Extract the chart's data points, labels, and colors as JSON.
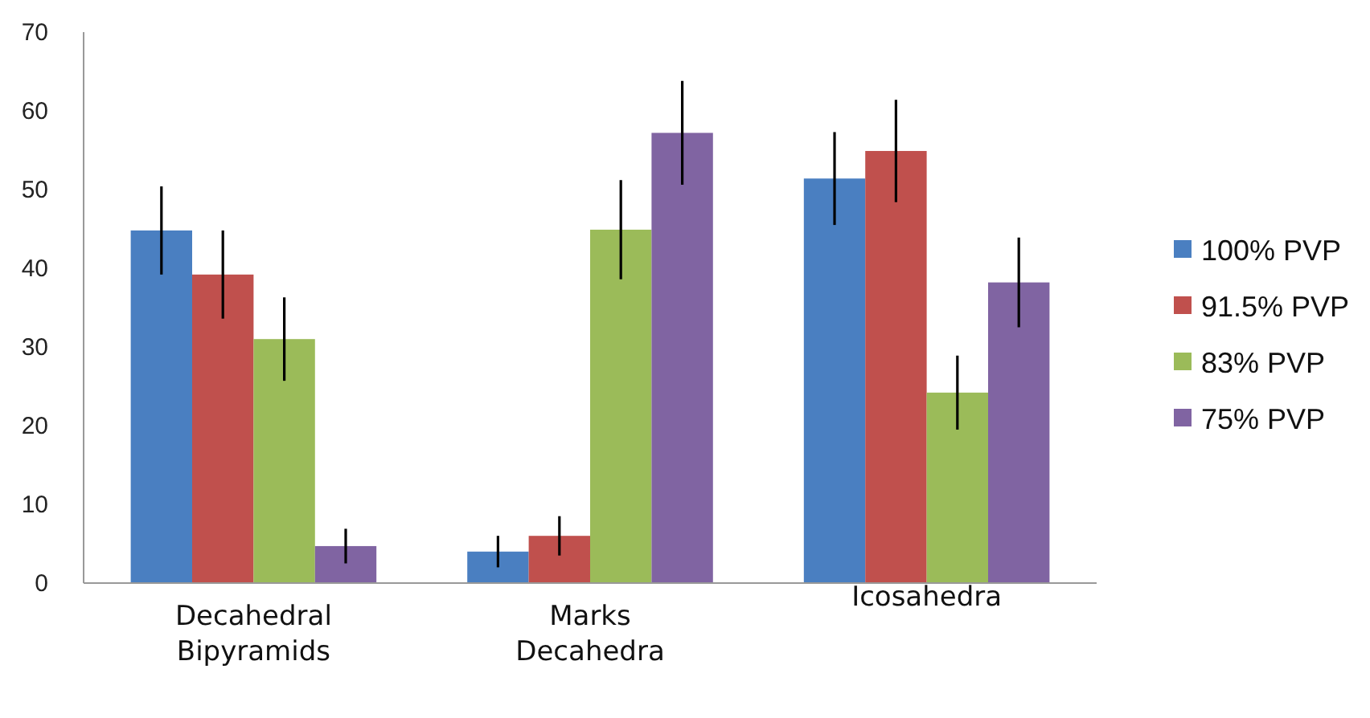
{
  "chart_data": {
    "type": "bar",
    "categories": [
      "Decahedral Bipyramids",
      "Marks Decahedra",
      "Icosahedra"
    ],
    "series": [
      {
        "name": "100% PVP",
        "color": "#4a7fc1",
        "values": [
          44.8,
          4.0,
          51.4
        ],
        "errors": [
          5.6,
          2.0,
          5.9
        ]
      },
      {
        "name": "91.5% PVP",
        "color": "#c0504d",
        "values": [
          39.2,
          6.0,
          54.9
        ],
        "errors": [
          5.6,
          2.5,
          6.5
        ]
      },
      {
        "name": "83% PVP",
        "color": "#9bbb59",
        "values": [
          31.0,
          44.9,
          24.2
        ],
        "errors": [
          5.3,
          6.3,
          4.7
        ]
      },
      {
        "name": "75% PVP",
        "color": "#8064a2",
        "values": [
          4.7,
          57.2,
          38.2
        ],
        "errors": [
          2.2,
          6.6,
          5.7
        ]
      }
    ],
    "ylim": [
      0,
      70
    ],
    "yticks": [
      0,
      10,
      20,
      30,
      40,
      50,
      60,
      70
    ],
    "grid": false,
    "legend": "right"
  }
}
